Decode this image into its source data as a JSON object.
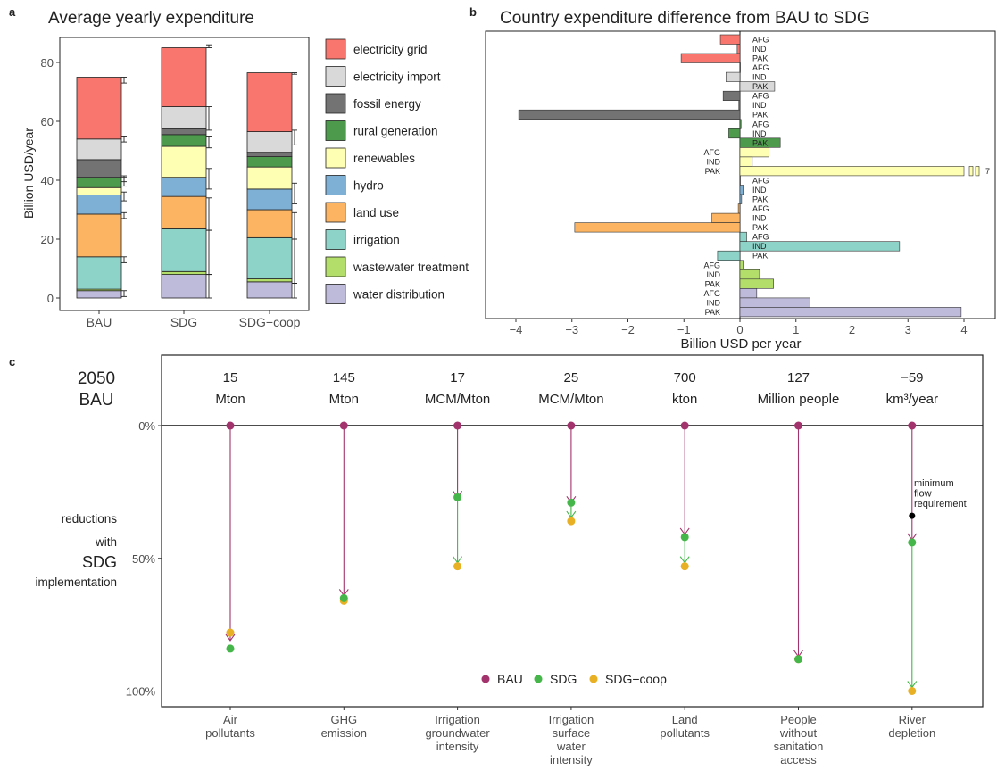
{
  "panels": {
    "a_letter": "a",
    "b_letter": "b",
    "c_letter": "c"
  },
  "colors": {
    "electricity grid": "#F8766D",
    "electricity import": "#D9D9D9",
    "fossil energy": "#737373",
    "rural generation": "#4D9A4D",
    "renewables": "#FFFFB3",
    "hydro": "#7EB0D5",
    "land use": "#FDB462",
    "irrigation": "#8DD3C7",
    "wastewater treatment": "#B3DE69",
    "water distribution": "#BEBADA",
    "BAU": "#A3336C",
    "SDG": "#45B649",
    "SDG-coop": "#E8B024"
  },
  "chart_data": [
    {
      "type": "bar",
      "title": "Average yearly expenditure",
      "ylabel": "Billion USD/year",
      "ylim": [
        0,
        88
      ],
      "yticks": [
        "0",
        "20",
        "40",
        "60",
        "80"
      ],
      "stacked": true,
      "categories": [
        "BAU",
        "SDG",
        "SDG−coop"
      ],
      "legend": [
        "electricity grid",
        "electricity import",
        "fossil energy",
        "rural generation",
        "renewables",
        "hydro",
        "land use",
        "irrigation",
        "wastewater treatment",
        "water distribution"
      ],
      "series": [
        {
          "name": "water distribution",
          "values": [
            2.5,
            8,
            5.5
          ]
        },
        {
          "name": "wastewater treatment",
          "values": [
            0.5,
            1,
            1
          ]
        },
        {
          "name": "irrigation",
          "values": [
            11,
            14.5,
            14
          ]
        },
        {
          "name": "land use",
          "values": [
            14.5,
            11,
            9.5
          ]
        },
        {
          "name": "hydro",
          "values": [
            6.5,
            6.5,
            7
          ]
        },
        {
          "name": "renewables",
          "values": [
            2.5,
            10.5,
            7.5
          ]
        },
        {
          "name": "rural generation",
          "values": [
            3.5,
            4,
            3.5
          ]
        },
        {
          "name": "fossil energy",
          "values": [
            6,
            2,
            1.5
          ]
        },
        {
          "name": "electricity import",
          "values": [
            7,
            7.5,
            7
          ]
        },
        {
          "name": "electricity grid",
          "values": [
            21,
            20,
            20
          ]
        }
      ],
      "error_bars": [
        [
          [
            0.5,
            2.5
          ],
          [
            12,
            14
          ],
          [
            27,
            29
          ],
          [
            33,
            36
          ],
          [
            38,
            41
          ],
          [
            39.5,
            41.5
          ],
          [
            53,
            55
          ],
          [
            73,
            75
          ]
        ],
        [
          [
            0,
            8
          ],
          [
            8,
            23
          ],
          [
            23,
            34
          ],
          [
            37,
            44
          ],
          [
            51,
            55
          ],
          [
            57,
            65
          ],
          [
            85,
            86
          ]
        ],
        [
          [
            0,
            5
          ],
          [
            5,
            20
          ],
          [
            20,
            29
          ],
          [
            32,
            39
          ],
          [
            52,
            57
          ],
          [
            76,
            76.5
          ]
        ]
      ]
    },
    {
      "type": "bar",
      "orientation": "horizontal",
      "title": "Country expenditure difference from BAU to SDG",
      "xlabel": "Billion USD per year",
      "xlim": [
        -4.45,
        4.35
      ],
      "xticks": [
        "−4",
        "−3",
        "−2",
        "−1",
        "0",
        "1",
        "2",
        "3",
        "4"
      ],
      "countries": [
        "AFG",
        "IND",
        "PAK"
      ],
      "series": [
        {
          "name": "electricity grid",
          "values": [
            -0.35,
            -0.05,
            -1.05
          ]
        },
        {
          "name": "electricity import",
          "values": [
            0.01,
            -0.25,
            0.62
          ]
        },
        {
          "name": "fossil energy",
          "values": [
            -0.3,
            -0.02,
            -3.95
          ]
        },
        {
          "name": "rural generation",
          "values": [
            0.02,
            -0.2,
            0.72
          ]
        },
        {
          "name": "renewables",
          "values": [
            0.52,
            0.22,
            4.0
          ]
        },
        {
          "name": "hydro",
          "values": [
            0.0,
            0.06,
            0.03
          ]
        },
        {
          "name": "land use",
          "values": [
            -0.03,
            -0.5,
            -2.95
          ]
        },
        {
          "name": "irrigation",
          "values": [
            0.12,
            2.85,
            -0.4
          ]
        },
        {
          "name": "wastewater treatment",
          "values": [
            0.06,
            0.35,
            0.6
          ]
        },
        {
          "name": "water distribution",
          "values": [
            0.3,
            1.25,
            3.95
          ]
        }
      ],
      "overflow_label": "7"
    },
    {
      "type": "scatter",
      "row_label_top": [
        "2050",
        "BAU"
      ],
      "row_label_side": [
        "reductions",
        "with",
        "SDG",
        "implementation"
      ],
      "yticks": [
        "0%",
        "50%",
        "100%"
      ],
      "legend": [
        "BAU",
        "SDG",
        "SDG−coop"
      ],
      "annotation": [
        "minimum",
        "flow",
        "requirement"
      ],
      "indicators": [
        {
          "name": [
            "Air",
            "pollutants"
          ],
          "baseline": "15",
          "unit": "Mton",
          "BAU": 0,
          "SDG": 84,
          "SDG_coop": 78,
          "bau_arrow": 81
        },
        {
          "name": [
            "GHG",
            "emission"
          ],
          "baseline": "145",
          "unit": "Mton",
          "BAU": 0,
          "SDG": 65,
          "SDG_coop": 66,
          "bau_arrow": 64
        },
        {
          "name": [
            "Irrigation",
            "groundwater",
            "intensity"
          ],
          "baseline": "17",
          "unit": "MCM/Mton",
          "BAU": 0,
          "SDG": 27,
          "SDG_coop": 53,
          "bau_arrow": 27
        },
        {
          "name": [
            "Irrigation",
            "surface",
            "water",
            "intensity"
          ],
          "baseline": "25",
          "unit": "MCM/Mton",
          "BAU": 0,
          "SDG": 29,
          "SDG_coop": 36,
          "bau_arrow": 29
        },
        {
          "name": [
            "Land",
            "pollutants"
          ],
          "baseline": "700",
          "unit": "kton",
          "BAU": 0,
          "SDG": 42,
          "SDG_coop": 53,
          "bau_arrow": 41
        },
        {
          "name": [
            "People",
            "without",
            "sanitation",
            "access"
          ],
          "baseline": "127",
          "unit": "Million people",
          "BAU": 0,
          "SDG": 88,
          "SDG_coop": 88,
          "bau_arrow": 87
        },
        {
          "name": [
            "River",
            "depletion"
          ],
          "baseline": "−59",
          "unit": "km³/year",
          "BAU": 0,
          "SDG": 44,
          "SDG_coop": 100,
          "bau_arrow": 43,
          "min_flow": 34
        }
      ]
    }
  ]
}
